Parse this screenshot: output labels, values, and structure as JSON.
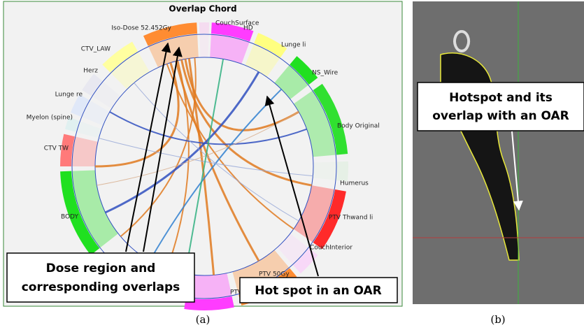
{
  "panel_a": {
    "title": "Overlap Chord",
    "segments": [
      "Iso-Dose 52.452Gy",
      "CouchSurface",
      "HD",
      "Lunge li",
      "NS_Wire",
      "Body Original",
      "Humerus",
      "PTV Thwand li",
      "CouchInterior",
      "PTV 50Gy",
      "PTV",
      "BODY",
      "CTV TW",
      "Myelon (spine)",
      "Lunge re",
      "Herz",
      "CTV_LAW"
    ],
    "callout_dose": [
      "Dose region and",
      "corresponding overlaps"
    ],
    "callout_hotspot": "Hot spot in an OAR",
    "caption": "(a)"
  },
  "panel_b": {
    "callout": [
      "Hotspot and its",
      "overlap with an OAR"
    ],
    "caption": "(b)"
  }
}
